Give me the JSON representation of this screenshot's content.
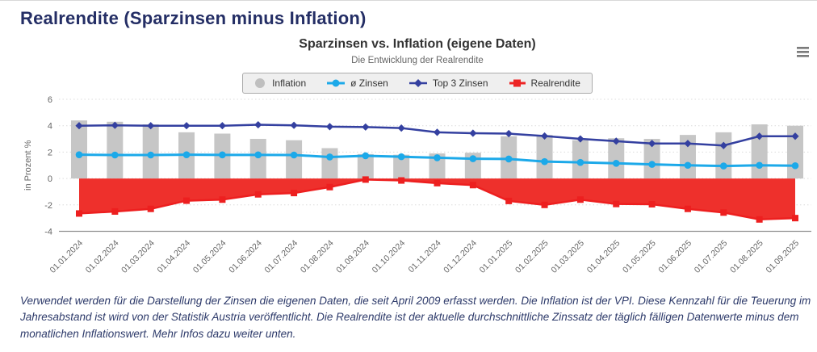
{
  "header": {
    "title": "Realrendite (Sparzinsen minus Inflation)"
  },
  "chart_menu": {
    "icon": "hamburger-icon"
  },
  "legend": {
    "items": [
      {
        "label": "Inflation",
        "marker": "circle",
        "color": "#bfbfbf"
      },
      {
        "label": "ø Zinsen",
        "marker": "line-circle",
        "color": "#1ca9e9"
      },
      {
        "label": "Top 3 Zinsen",
        "marker": "line-diamond",
        "color": "#3440a0"
      },
      {
        "label": "Realrendite",
        "marker": "line-square",
        "color": "#ed2424"
      }
    ]
  },
  "chart_data": {
    "type": "combo",
    "title": "Sparzinsen vs. Inflation (eigene Daten)",
    "subtitle": "Die Entwicklung der Realrendite",
    "ylabel": "in Prozent %",
    "ylim": [
      -4,
      6
    ],
    "ytick_interval": 2,
    "grid": "dotted-horizontal",
    "legend_position": "top-center",
    "categories": [
      "01.01.2024",
      "01.02.2024",
      "01.03.2024",
      "01.04.2024",
      "01.05.2024",
      "01.06.2024",
      "01.07.2024",
      "01.08.2024",
      "01.09.2024",
      "01.10.2024",
      "01.11.2024",
      "01.12.2024",
      "01.01.2025",
      "01.02.2025",
      "01.03.2025",
      "01.04.2025",
      "01.05.2025",
      "01.06.2025",
      "01.07.2025",
      "01.08.2025",
      "01.09.2025"
    ],
    "series": [
      {
        "name": "Inflation",
        "type": "bar",
        "color": "#c6c6c6",
        "values": [
          4.4,
          4.3,
          4.1,
          3.5,
          3.4,
          3.0,
          2.9,
          2.3,
          1.85,
          1.8,
          1.9,
          1.95,
          3.2,
          3.3,
          2.9,
          3.05,
          3.0,
          3.3,
          3.5,
          4.1,
          4.0
        ]
      },
      {
        "name": "ø Zinsen",
        "type": "line",
        "marker": "circle",
        "color": "#1ca9e9",
        "values": [
          1.8,
          1.78,
          1.78,
          1.8,
          1.79,
          1.79,
          1.78,
          1.63,
          1.72,
          1.65,
          1.57,
          1.5,
          1.48,
          1.28,
          1.22,
          1.15,
          1.07,
          1.0,
          0.95,
          1.0,
          0.97
        ]
      },
      {
        "name": "Top 3 Zinsen",
        "type": "line",
        "marker": "diamond",
        "color": "#3440a0",
        "values": [
          4.0,
          4.03,
          4.0,
          4.0,
          4.0,
          4.07,
          4.03,
          3.93,
          3.9,
          3.82,
          3.5,
          3.43,
          3.4,
          3.22,
          3.0,
          2.83,
          2.65,
          2.65,
          2.5,
          3.2,
          3.2
        ]
      },
      {
        "name": "Realrendite",
        "type": "area",
        "marker": "square",
        "color": "#ee302c",
        "line_color": "#ed1f1f",
        "values": [
          -2.65,
          -2.5,
          -2.3,
          -1.68,
          -1.6,
          -1.2,
          -1.1,
          -0.65,
          -0.08,
          -0.15,
          -0.35,
          -0.5,
          -1.7,
          -2.0,
          -1.6,
          -1.93,
          -1.95,
          -2.3,
          -2.58,
          -3.1,
          -3.0
        ]
      }
    ]
  },
  "footer": {
    "description": "Verwendet werden für die Darstellung der Zinsen die eigenen Daten, die seit April 2009 erfasst werden. Die Inflation ist der VPI. Diese Kennzahl für die Teuerung im Jahresabstand ist wird von der Statistik Austria veröffentlicht. Die Realrendite ist der aktuelle durchschnittliche Zinssatz der täglich fälligen Datenwerte minus dem monatlichen Inflationswert. Mehr Infos dazu weiter unten."
  }
}
